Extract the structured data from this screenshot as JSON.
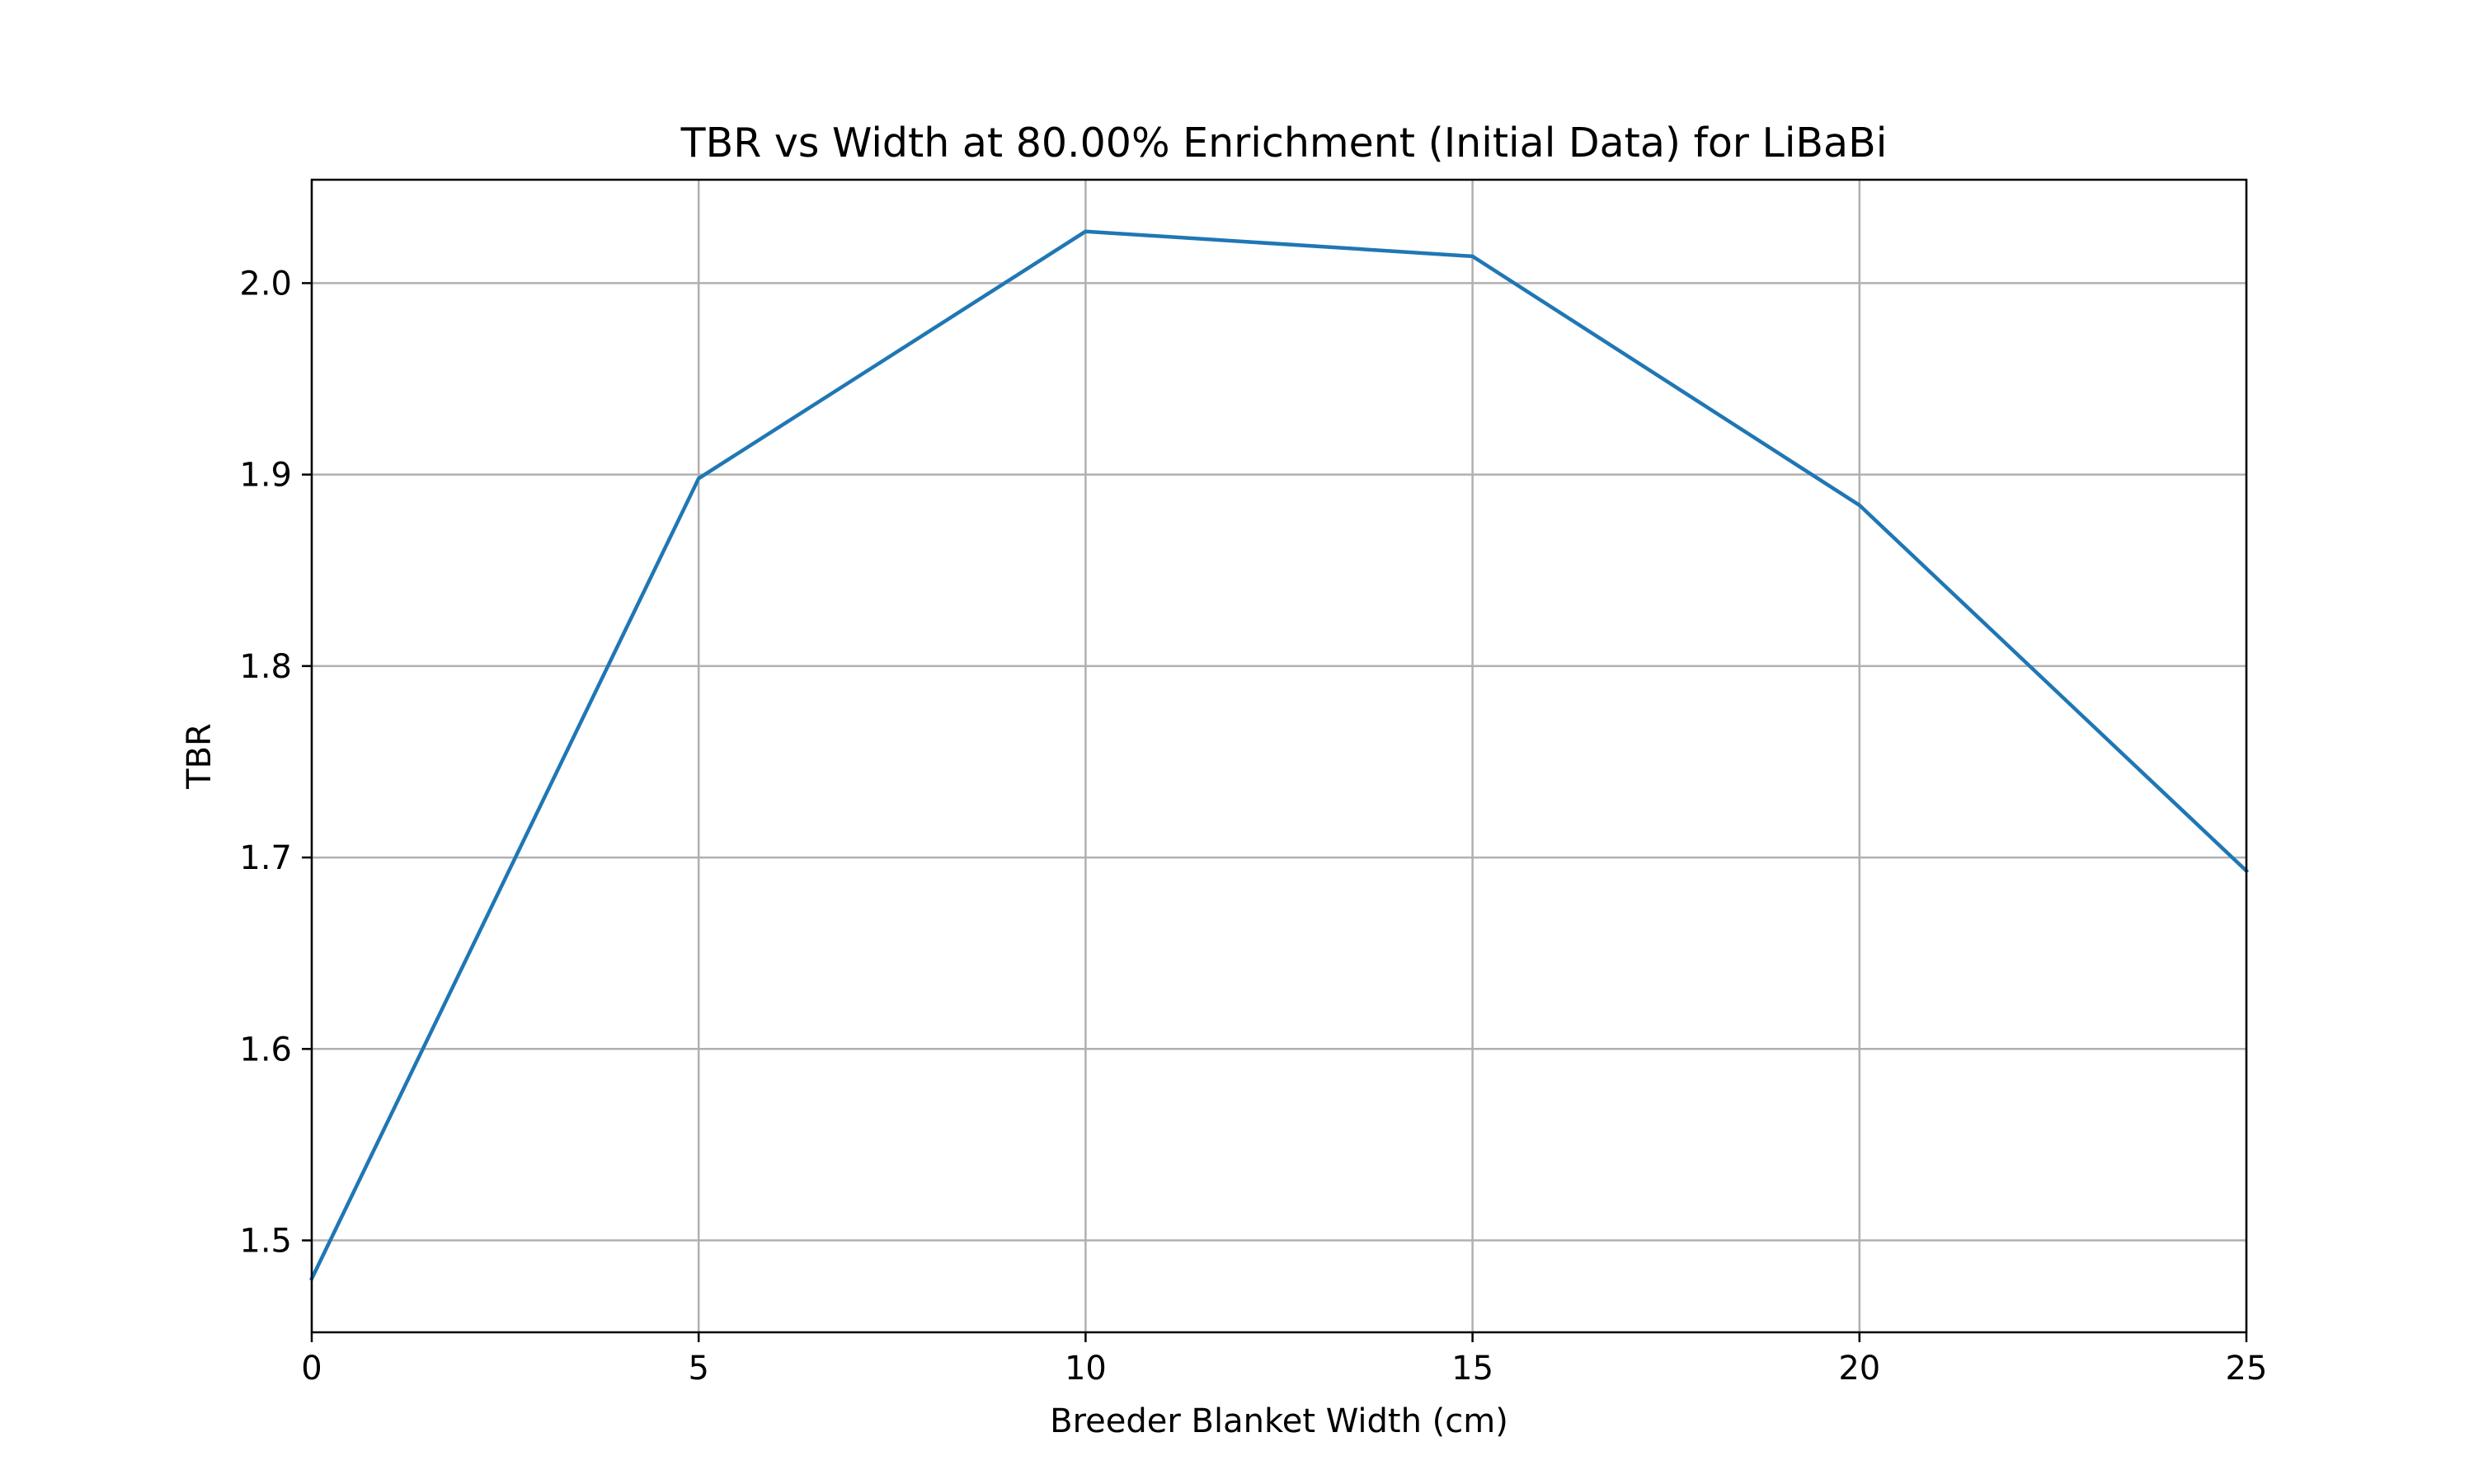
{
  "chart_data": {
    "type": "line",
    "title": "TBR vs Width at 80.00% Enrichment (Initial Data) for LiBaBi",
    "xlabel": "Breeder Blanket Width (cm)",
    "ylabel": "TBR",
    "xlim": [
      0,
      25
    ],
    "ylim": [
      1.452,
      2.054
    ],
    "xticks": [
      0,
      5,
      10,
      15,
      20,
      25
    ],
    "xtick_labels": [
      "0",
      "5",
      "10",
      "15",
      "20",
      "25"
    ],
    "yticks": [
      1.5,
      1.6,
      1.7,
      1.8,
      1.9,
      2.0
    ],
    "ytick_labels": [
      "1.5",
      "1.6",
      "1.7",
      "1.8",
      "1.9",
      "2.0"
    ],
    "grid": true,
    "legend": false,
    "series": [
      {
        "color": "#1f77b4",
        "x": [
          0,
          5,
          10,
          15,
          20,
          25
        ],
        "y": [
          1.48,
          1.898,
          2.027,
          2.014,
          1.884,
          1.693
        ]
      }
    ]
  }
}
